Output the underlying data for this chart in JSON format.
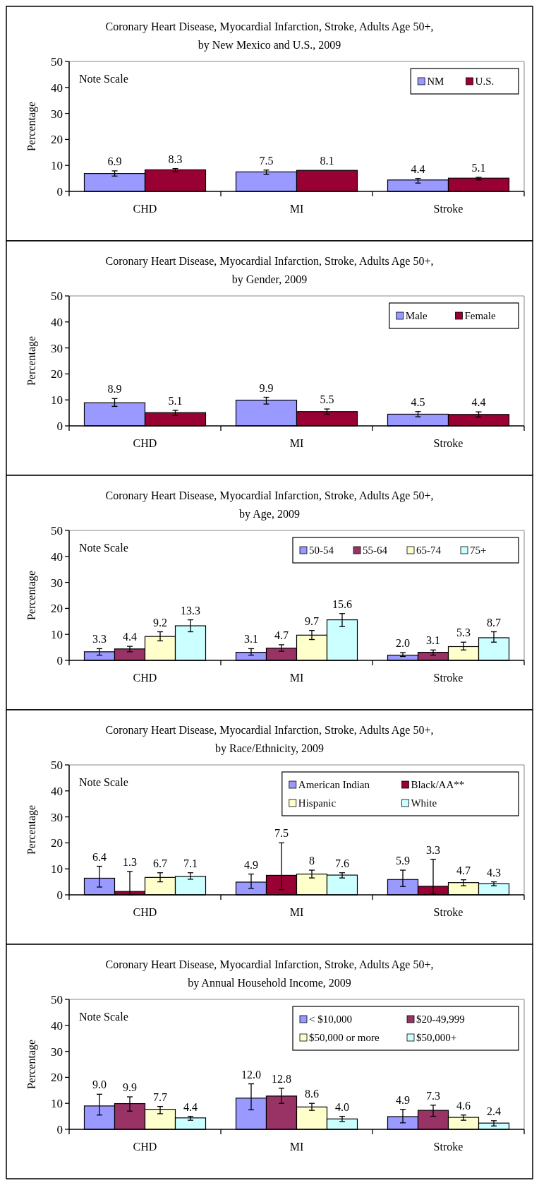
{
  "chart_data": [
    {
      "type": "bar",
      "title": "Coronary Heart Disease, Myocardial Infarction, Stroke, Adults Age 50+,",
      "subtitle": "by New Mexico and U.S.,  2009",
      "ylabel": "Percentage",
      "categories": [
        "CHD",
        "MI",
        "Stroke"
      ],
      "ylim": [
        0,
        50
      ],
      "yticks": [
        0,
        10,
        20,
        30,
        40,
        50
      ],
      "legend": "top right",
      "annotations": [
        "Note Scale"
      ],
      "series": [
        {
          "name": "NM",
          "color": "#9999ff",
          "values": [
            6.9,
            7.5,
            4.4
          ],
          "errors": [
            [
              5.9,
              7.9
            ],
            [
              6.5,
              8.2
            ],
            [
              3.2,
              5.0
            ]
          ],
          "value_labels": [
            "6.9",
            "7.5",
            "4.4"
          ]
        },
        {
          "name": "U.S.",
          "color": "#990033",
          "values": [
            8.3,
            8.1,
            5.1
          ],
          "errors": [
            [
              7.6,
              8.8
            ],
            null,
            [
              4.4,
              5.4
            ]
          ],
          "value_labels": [
            "8.3",
            "8.1",
            "5.1"
          ]
        }
      ]
    },
    {
      "type": "bar",
      "title": "Coronary Heart Disease, Myocardial Infarction, Stroke, Adults Age 50+,",
      "subtitle": "by Gender, 2009",
      "ylabel": "Percentage",
      "categories": [
        "CHD",
        "MI",
        "Stroke"
      ],
      "ylim": [
        0,
        50
      ],
      "yticks": [
        0,
        10,
        20,
        30,
        40,
        50
      ],
      "legend": "top right",
      "series": [
        {
          "name": "Male",
          "color": "#9999ff",
          "values": [
            8.9,
            9.9,
            4.5
          ],
          "errors": [
            [
              7.5,
              10.5
            ],
            [
              8.4,
              11
            ],
            [
              3.5,
              5.5
            ]
          ],
          "value_labels": [
            "8.9",
            "9.9",
            "4.5"
          ]
        },
        {
          "name": "Female",
          "color": "#990033",
          "values": [
            5.1,
            5.5,
            4.4
          ],
          "errors": [
            [
              4,
              6
            ],
            [
              4.5,
              6.5
            ],
            [
              3.4,
              5.4
            ]
          ],
          "value_labels": [
            "5.1",
            "5.5",
            "4.4"
          ]
        }
      ]
    },
    {
      "type": "bar",
      "title": "Coronary Heart Disease, Myocardial Infarction, Stroke, Adults Age 50+,",
      "subtitle": "by Age, 2009",
      "ylabel": "Percentage",
      "categories": [
        "CHD",
        "MI",
        "Stroke"
      ],
      "ylim": [
        0,
        50
      ],
      "yticks": [
        0,
        10,
        20,
        30,
        40,
        50
      ],
      "legend": "top right",
      "annotations": [
        "Note Scale"
      ],
      "series": [
        {
          "name": "50-54",
          "color": "#9999ff",
          "values": [
            3.3,
            3.1,
            2.0
          ],
          "errors": [
            [
              2,
              4.5
            ],
            [
              2,
              4.5
            ],
            [
              1.5,
              3
            ]
          ],
          "value_labels": [
            "3.3",
            "3.1",
            "2.0"
          ]
        },
        {
          "name": "55-64",
          "color": "#993366",
          "values": [
            4.4,
            4.7,
            3.1
          ],
          "errors": [
            [
              3.3,
              5.4
            ],
            [
              3.5,
              6
            ],
            [
              2,
              4
            ]
          ],
          "value_labels": [
            "4.4",
            "4.7",
            "3.1"
          ]
        },
        {
          "name": "65-74",
          "color": "#ffffcc",
          "values": [
            9.2,
            9.7,
            5.3
          ],
          "errors": [
            [
              7.5,
              11
            ],
            [
              8,
              11.5
            ],
            [
              4,
              7
            ]
          ],
          "value_labels": [
            "9.2",
            "9.7",
            "5.3"
          ]
        },
        {
          "name": "75+",
          "color": "#ccffff",
          "values": [
            13.3,
            15.6,
            8.7
          ],
          "errors": [
            [
              11,
              15.6
            ],
            [
              13,
              18
            ],
            [
              7,
              11
            ]
          ],
          "value_labels": [
            "13.3",
            "15.6",
            "8.7"
          ]
        }
      ]
    },
    {
      "type": "bar",
      "title": "Coronary Heart Disease, Myocardial Infarction, Stroke, Adults Age 50+,",
      "subtitle": "by Race/Ethnicity, 2009",
      "ylabel": "Percentage",
      "categories": [
        "CHD",
        "MI",
        "Stroke"
      ],
      "ylim": [
        0,
        50
      ],
      "yticks": [
        0,
        10,
        20,
        30,
        40,
        50
      ],
      "legend": "top right",
      "annotations": [
        "Note Scale"
      ],
      "series": [
        {
          "name": "American  Indian",
          "color": "#9999ff",
          "values": [
            6.4,
            4.9,
            5.9
          ],
          "errors": [
            [
              3,
              11
            ],
            [
              2.5,
              8
            ],
            [
              3.2,
              9.5
            ]
          ],
          "value_labels": [
            "6.4",
            "4.9",
            "5.9"
          ]
        },
        {
          "name": "Black/AA**",
          "color": "#990033",
          "values": [
            1.3,
            7.5,
            3.3
          ],
          "errors": [
            [
              0,
              9
            ],
            [
              2,
              20
            ],
            [
              0.3,
              13.7
            ]
          ],
          "value_labels": [
            "1.3",
            "7.5",
            "3.3"
          ]
        },
        {
          "name": "Hispanic",
          "color": "#ffffcc",
          "values": [
            6.7,
            8,
            4.7
          ],
          "errors": [
            [
              5,
              8.5
            ],
            [
              6.5,
              9.5
            ],
            [
              3.5,
              5.8
            ]
          ],
          "value_labels": [
            "6.7",
            "8",
            "4.7"
          ]
        },
        {
          "name": "White",
          "color": "#ccffff",
          "values": [
            7.1,
            7.6,
            4.3
          ],
          "errors": [
            [
              6,
              8.5
            ],
            [
              6.5,
              8.5
            ],
            [
              3.5,
              5
            ]
          ],
          "value_labels": [
            "7.1",
            "7.6",
            "4.3"
          ]
        }
      ]
    },
    {
      "type": "bar",
      "title": "Coronary Heart Disease, Myocardial Infarction, Stroke, Adults Age 50+,",
      "subtitle": "by Annual Household Income, 2009",
      "ylabel": "Percentage",
      "categories": [
        "CHD",
        "MI",
        "Stroke"
      ],
      "ylim": [
        0,
        50
      ],
      "yticks": [
        0,
        10,
        20,
        30,
        40,
        50
      ],
      "legend": "top right",
      "annotations": [
        "Note Scale"
      ],
      "series": [
        {
          "name": "< $10,000",
          "color": "#9999ff",
          "values": [
            9.0,
            12.0,
            4.9
          ],
          "errors": [
            [
              5.5,
              13.5
            ],
            [
              7.5,
              17.5
            ],
            [
              2.5,
              7.7
            ]
          ],
          "value_labels": [
            "9.0",
            "12.0",
            "4.9"
          ]
        },
        {
          "name": "$20-49,999",
          "color": "#993366",
          "values": [
            9.9,
            12.8,
            7.3
          ],
          "errors": [
            [
              7,
              12.5
            ],
            [
              10,
              15.8
            ],
            [
              5,
              9.3
            ]
          ],
          "value_labels": [
            "9.9",
            "12.8",
            "7.3"
          ]
        },
        {
          "name": "$50,000 or more",
          "color": "#ffffcc",
          "values": [
            7.7,
            8.6,
            4.6
          ],
          "errors": [
            [
              6,
              8.8
            ],
            [
              7.3,
              10
            ],
            [
              3.5,
              5.5
            ]
          ],
          "value_labels": [
            "7.7",
            "8.6",
            "4.6"
          ]
        },
        {
          "name": "$50,000+",
          "color": "#ccffff",
          "values": [
            4.4,
            4.0,
            2.4
          ],
          "errors": [
            [
              3.5,
              5
            ],
            [
              3,
              5
            ],
            [
              1.3,
              3.3
            ]
          ],
          "value_labels": [
            "4.4",
            "4.0",
            "2.4"
          ]
        }
      ]
    }
  ]
}
